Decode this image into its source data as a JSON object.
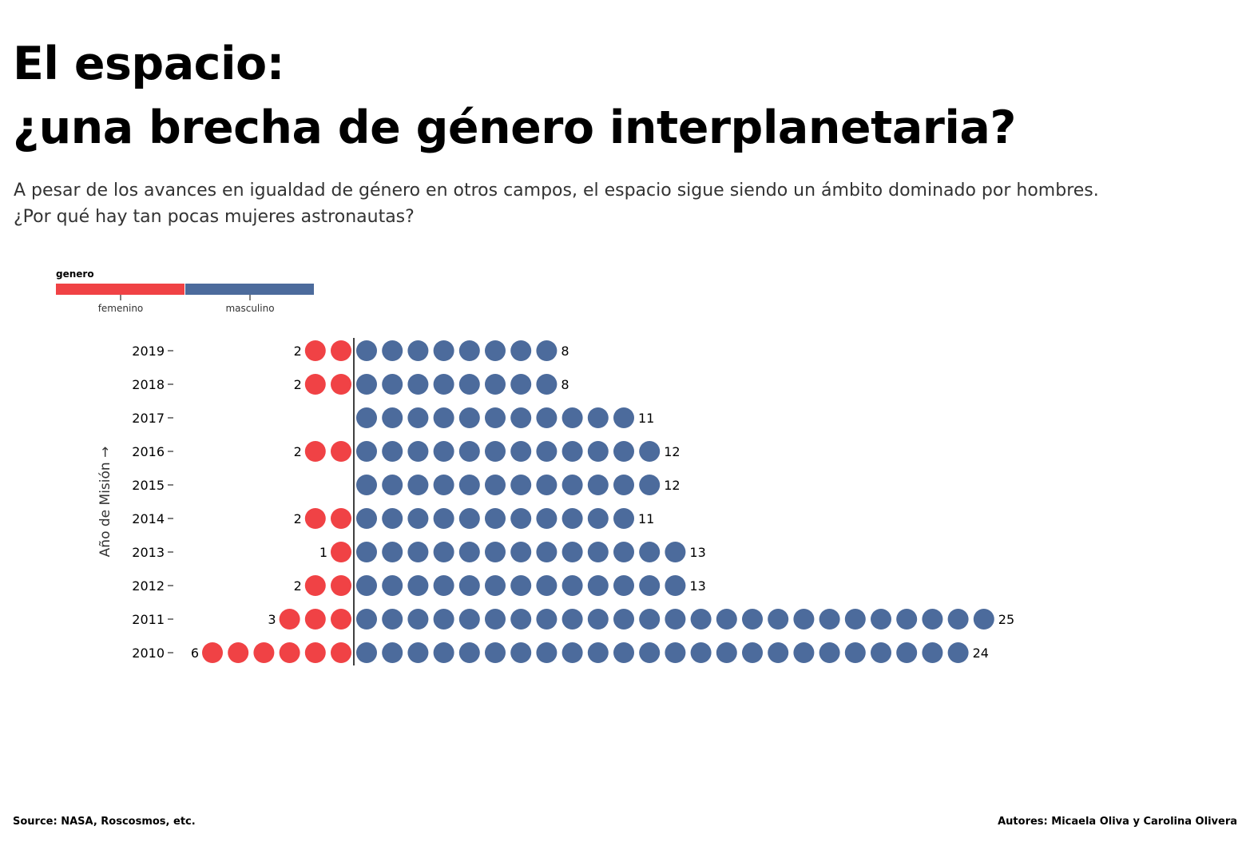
{
  "header": {
    "title_line1": "El espacio:",
    "title_line2": "¿una brecha de género interplanetaria?",
    "subtitle_line1": "A pesar de los avances en igualdad de género en otros campos, el espacio sigue siendo un ámbito dominado por hombres.",
    "subtitle_line2": "¿Por qué hay tan pocas mujeres astronautas?"
  },
  "footer": {
    "source": "Source: NASA, Roscosmos, etc.",
    "authors": "Autores: Micaela Oliva y Carolina Olivera"
  },
  "chart_data": {
    "type": "dot-bar",
    "ylabel": "Año de Misión →",
    "legend": {
      "title": "genero",
      "placement": "top-left",
      "entries": [
        {
          "name": "femenino",
          "color": "#f04245"
        },
        {
          "name": "masculino",
          "color": "#4c6b9c"
        }
      ]
    },
    "categories": [
      "2019",
      "2018",
      "2017",
      "2016",
      "2015",
      "2014",
      "2013",
      "2012",
      "2011",
      "2010"
    ],
    "series": [
      {
        "name": "femenino",
        "color": "#f04245",
        "values": [
          2,
          2,
          0,
          2,
          0,
          2,
          1,
          2,
          3,
          6
        ]
      },
      {
        "name": "masculino",
        "color": "#4c6b9c",
        "values": [
          8,
          8,
          11,
          12,
          12,
          11,
          13,
          13,
          25,
          24
        ]
      }
    ]
  }
}
